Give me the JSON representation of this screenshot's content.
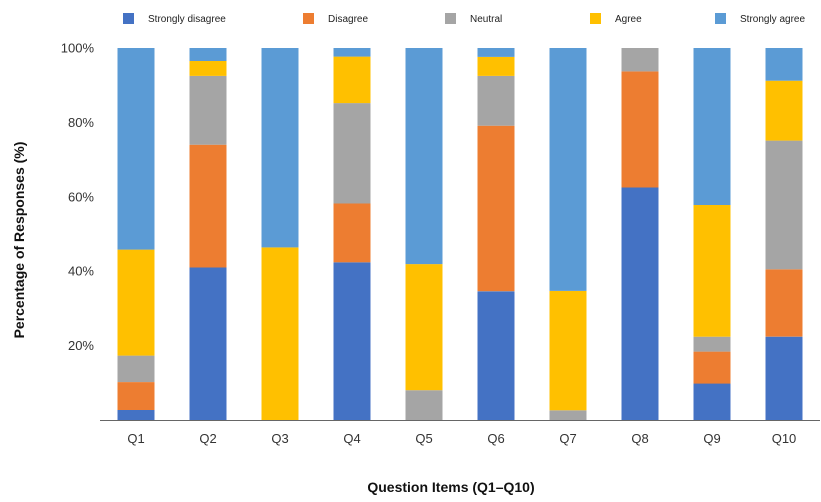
{
  "chart_data": {
    "type": "bar",
    "stacked": true,
    "percent_stacked": true,
    "categories": [
      "Q1",
      "Q2",
      "Q3",
      "Q4",
      "Q5",
      "Q6",
      "Q7",
      "Q8",
      "Q9",
      "Q10"
    ],
    "series": [
      {
        "name": "Strongly disagree",
        "color": "#4472C4",
        "values": [
          2.7,
          41,
          0,
          42.4,
          0,
          34.6,
          0,
          62.5,
          9.8,
          22.4
        ]
      },
      {
        "name": "Disagree",
        "color": "#ED7D31",
        "values": [
          7.5,
          33,
          0,
          15.8,
          0,
          44.5,
          0,
          31.2,
          8.6,
          18.1
        ]
      },
      {
        "name": "Neutral",
        "color": "#A5A5A5",
        "values": [
          7.1,
          18.5,
          0,
          27,
          8.0,
          13.4,
          2.6,
          6.3,
          4.0,
          34.6
        ]
      },
      {
        "name": "Agree",
        "color": "#FFC000",
        "values": [
          28.5,
          4,
          46.4,
          12.5,
          33.9,
          5.1,
          32.1,
          0,
          35.4,
          16.1
        ]
      },
      {
        "name": "Strongly agree",
        "color": "#5B9BD5",
        "values": [
          54.2,
          3.5,
          53.6,
          2.3,
          58.1,
          2.4,
          65.3,
          0,
          42.2,
          8.8
        ]
      }
    ],
    "title": "",
    "xlabel": "Question Items (Q1–Q10)",
    "ylabel": "Percentage of Responses (%)",
    "ylim": [
      0,
      100
    ],
    "yticks": [
      {
        "value": 20,
        "label": "20%"
      },
      {
        "value": 40,
        "label": "40%"
      },
      {
        "value": 60,
        "label": "60%"
      },
      {
        "value": 80,
        "label": "80%"
      },
      {
        "value": 100,
        "label": "100%"
      }
    ],
    "grid": false,
    "legend_position": "top"
  }
}
